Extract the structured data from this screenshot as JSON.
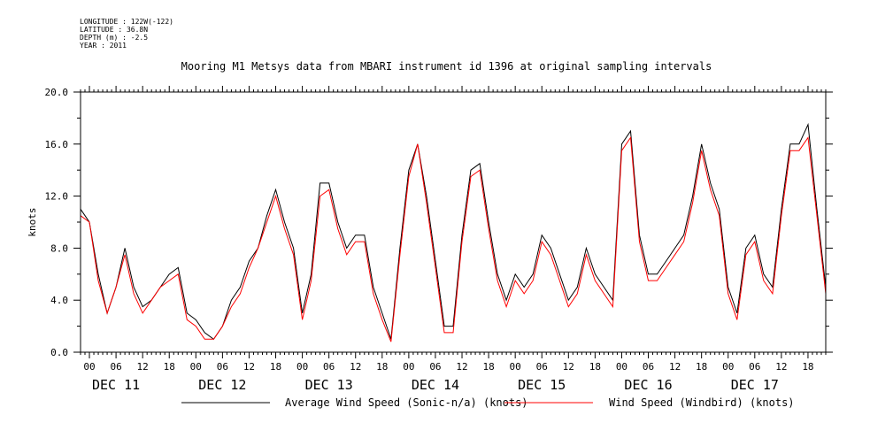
{
  "meta": {
    "longitude": "LONGITUDE : 122W(-122)",
    "latitude": "LATITUDE : 36.8N",
    "depth": "DEPTH (m) : -2.5",
    "year": "YEAR : 2011"
  },
  "chart_data": {
    "type": "line",
    "title": "Mooring M1 Metsys data from MBARI instrument id 1396 at original sampling intervals",
    "ylabel": "knots",
    "xlabel": "",
    "ylim": [
      0,
      20
    ],
    "yticks": [
      "0.0",
      "4.0",
      "8.0",
      "12.0",
      "16.0",
      "20.0"
    ],
    "xlim_hours": [
      -2,
      166
    ],
    "hour_tick_labels": [
      "00",
      "06",
      "12",
      "18",
      "00",
      "06",
      "12",
      "18",
      "00",
      "06",
      "12",
      "18",
      "00",
      "06",
      "12",
      "18",
      "00",
      "06",
      "12",
      "18",
      "00",
      "06",
      "12",
      "18",
      "00",
      "06",
      "12",
      "18"
    ],
    "day_labels": [
      "DEC 11",
      "DEC 12",
      "DEC 13",
      "DEC 14",
      "DEC 15",
      "DEC 16",
      "DEC 17"
    ],
    "legend_position": "bottom",
    "series": [
      {
        "name": "Average Wind Speed (Sonic-n/a) (knots)",
        "color": "#000000",
        "x_hours": [
          -2,
          0,
          2,
          4,
          6,
          8,
          10,
          12,
          14,
          16,
          18,
          20,
          22,
          24,
          26,
          28,
          30,
          32,
          34,
          36,
          38,
          40,
          42,
          44,
          46,
          48,
          50,
          52,
          54,
          56,
          58,
          60,
          62,
          64,
          66,
          68,
          70,
          72,
          74,
          76,
          78,
          80,
          82,
          84,
          86,
          88,
          90,
          92,
          94,
          96,
          98,
          100,
          102,
          104,
          106,
          108,
          110,
          112,
          114,
          116,
          118,
          120,
          122,
          124,
          126,
          128,
          130,
          132,
          134,
          136,
          138,
          140,
          142,
          144,
          146,
          148,
          150,
          152,
          154,
          156,
          158,
          160,
          162,
          164,
          166
        ],
        "values": [
          11,
          10,
          6,
          3,
          5,
          8,
          5,
          3.5,
          4,
          5,
          6,
          6.5,
          3,
          2.5,
          1.5,
          1,
          2,
          4,
          5,
          7,
          8,
          10.5,
          12.5,
          10,
          8,
          3,
          6,
          13,
          13,
          10,
          8,
          9,
          9,
          5,
          3,
          1,
          8,
          14,
          16,
          12,
          7,
          2,
          2,
          9,
          14,
          14.5,
          10,
          6,
          4,
          6,
          5,
          6,
          9,
          8,
          6,
          4,
          5,
          8,
          6,
          5,
          4,
          16,
          17,
          9,
          6,
          6,
          7,
          8,
          9,
          12,
          16,
          13,
          11,
          5,
          3,
          8,
          9,
          6,
          5,
          11,
          16,
          16,
          17.5,
          11,
          5
        ]
      },
      {
        "name": "Wind Speed (Windbird) (knots)",
        "color": "#ff0000",
        "x_hours": [
          -2,
          0,
          2,
          4,
          6,
          8,
          10,
          12,
          14,
          16,
          18,
          20,
          22,
          24,
          26,
          28,
          30,
          32,
          34,
          36,
          38,
          40,
          42,
          44,
          46,
          48,
          50,
          52,
          54,
          56,
          58,
          60,
          62,
          64,
          66,
          68,
          70,
          72,
          74,
          76,
          78,
          80,
          82,
          84,
          86,
          88,
          90,
          92,
          94,
          96,
          98,
          100,
          102,
          104,
          106,
          108,
          110,
          112,
          114,
          116,
          118,
          120,
          122,
          124,
          126,
          128,
          130,
          132,
          134,
          136,
          138,
          140,
          142,
          144,
          146,
          148,
          150,
          152,
          154,
          156,
          158,
          160,
          162,
          164,
          166
        ],
        "values": [
          10.5,
          10,
          5.5,
          3,
          5,
          7.5,
          4.5,
          3,
          4,
          5,
          5.5,
          6,
          2.5,
          2,
          1,
          1,
          2,
          3.5,
          4.5,
          6.5,
          8,
          10,
          12,
          9.5,
          7.5,
          2.5,
          5.5,
          12,
          12.5,
          9.5,
          7.5,
          8.5,
          8.5,
          4.5,
          2.5,
          0.8,
          7.5,
          13.5,
          16,
          11.5,
          6.5,
          1.5,
          1.5,
          8.5,
          13.5,
          14,
          9.5,
          5.5,
          3.5,
          5.5,
          4.5,
          5.5,
          8.5,
          7.5,
          5.5,
          3.5,
          4.5,
          7.5,
          5.5,
          4.5,
          3.5,
          15.5,
          16.5,
          8.5,
          5.5,
          5.5,
          6.5,
          7.5,
          8.5,
          11.5,
          15.5,
          12.5,
          10.5,
          4.5,
          2.5,
          7.5,
          8.5,
          5.5,
          4.5,
          10.5,
          15.5,
          15.5,
          16.5,
          10.5,
          4.5
        ]
      }
    ]
  }
}
